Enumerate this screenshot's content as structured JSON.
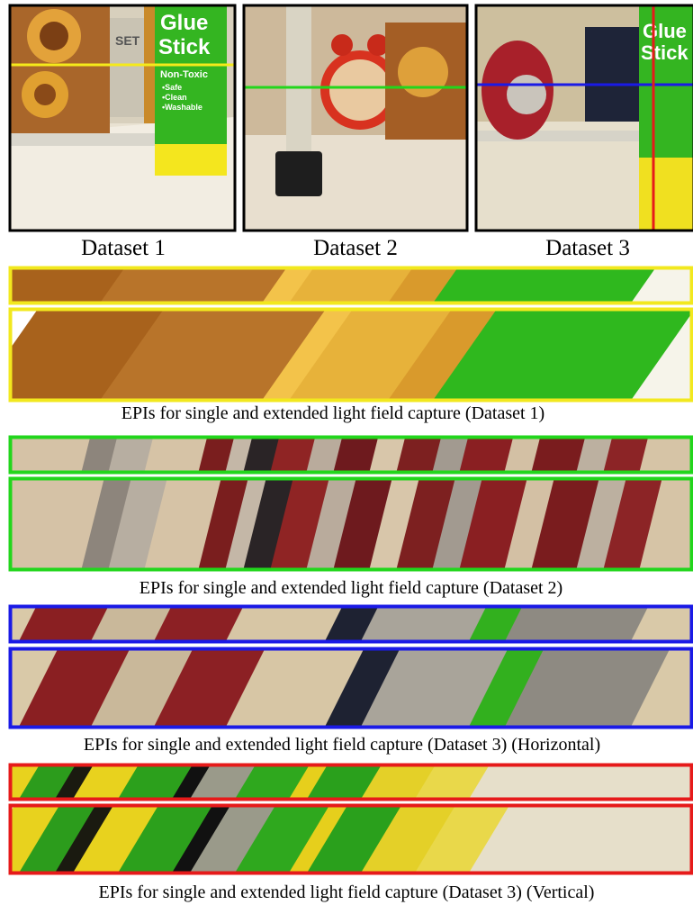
{
  "panels": [
    {
      "label": "Dataset 1",
      "photo_text": [
        "Glue",
        "Stick",
        "Non-Toxic",
        "•Safe",
        "•Clean",
        "•Washable"
      ]
    },
    {
      "label": "Dataset 2"
    },
    {
      "label": "Dataset 3",
      "photo_text": [
        "Glue",
        "Stick"
      ]
    }
  ],
  "captions": [
    "EPIs for single and extended light field capture (Dataset 1)",
    "EPIs for single and extended light field capture (Dataset 2)",
    "EPIs for single and extended light field capture (Dataset 3) (Horizontal)",
    "EPIs for single and extended light field capture (Dataset 3) (Vertical)"
  ]
}
